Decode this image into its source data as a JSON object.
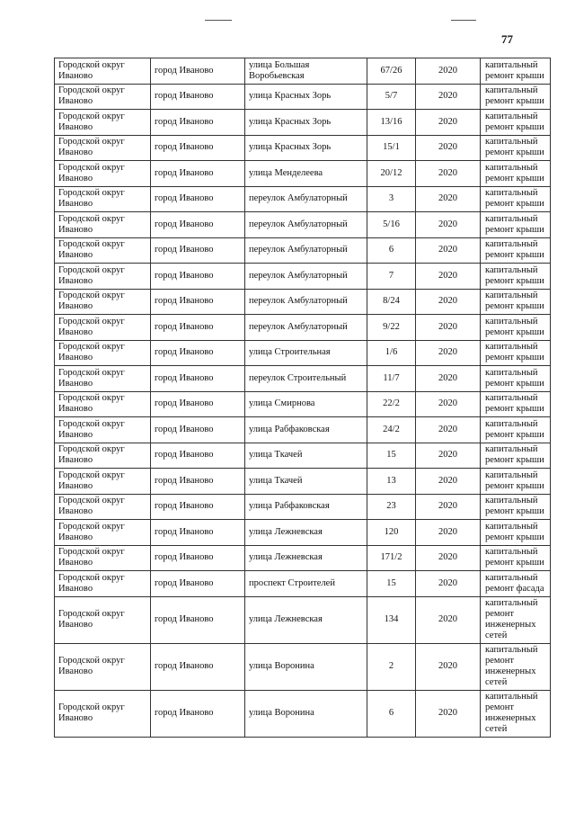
{
  "page_number": "77",
  "rows": [
    [
      "Городской округ Иваново",
      "город Иваново",
      "улица Большая Воробьевская",
      "67/26",
      "2020",
      "капитальный ремонт крыши"
    ],
    [
      "Городской округ Иваново",
      "город Иваново",
      "улица Красных Зорь",
      "5/7",
      "2020",
      "капитальный ремонт крыши"
    ],
    [
      "Городской округ Иваново",
      "город Иваново",
      "улица Красных Зорь",
      "13/16",
      "2020",
      "капитальный ремонт крыши"
    ],
    [
      "Городской округ Иваново",
      "город Иваново",
      "улица Красных Зорь",
      "15/1",
      "2020",
      "капитальный ремонт крыши"
    ],
    [
      "Городской округ Иваново",
      "город Иваново",
      "улица Менделеева",
      "20/12",
      "2020",
      "капитальный ремонт крыши"
    ],
    [
      "Городской округ Иваново",
      "город Иваново",
      "переулок Амбулаторный",
      "3",
      "2020",
      "капитальный ремонт крыши"
    ],
    [
      "Городской округ Иваново",
      "город Иваново",
      "переулок Амбулаторный",
      "5/16",
      "2020",
      "капитальный ремонт крыши"
    ],
    [
      "Городской округ Иваново",
      "город Иваново",
      "переулок Амбулаторный",
      "6",
      "2020",
      "капитальный ремонт крыши"
    ],
    [
      "Городской округ Иваново",
      "город Иваново",
      "переулок Амбулаторный",
      "7",
      "2020",
      "капитальный ремонт крыши"
    ],
    [
      "Городской округ Иваново",
      "город Иваново",
      "переулок Амбулаторный",
      "8/24",
      "2020",
      "капитальный ремонт крыши"
    ],
    [
      "Городской округ Иваново",
      "город Иваново",
      "переулок Амбулаторный",
      "9/22",
      "2020",
      "капитальный ремонт крыши"
    ],
    [
      "Городской округ Иваново",
      "город Иваново",
      "улица Строительная",
      "1/6",
      "2020",
      "капитальный ремонт крыши"
    ],
    [
      "Городской округ Иваново",
      "город Иваново",
      "переулок Строительный",
      "11/7",
      "2020",
      "капитальный ремонт крыши"
    ],
    [
      "Городской округ Иваново",
      "город Иваново",
      "улица Смирнова",
      "22/2",
      "2020",
      "капитальный ремонт крыши"
    ],
    [
      "Городской округ Иваново",
      "город Иваново",
      "улица Рабфаковская",
      "24/2",
      "2020",
      "капитальный ремонт крыши"
    ],
    [
      "Городской округ Иваново",
      "город Иваново",
      "улица Ткачей",
      "15",
      "2020",
      "капитальный ремонт крыши"
    ],
    [
      "Городской округ Иваново",
      "город Иваново",
      "улица Ткачей",
      "13",
      "2020",
      "капитальный ремонт крыши"
    ],
    [
      "Городской округ Иваново",
      "город Иваново",
      "улица Рабфаковская",
      "23",
      "2020",
      "капитальный ремонт крыши"
    ],
    [
      "Городской округ Иваново",
      "город Иваново",
      "улица Лежневская",
      "120",
      "2020",
      "капитальный ремонт крыши"
    ],
    [
      "Городской округ Иваново",
      "город Иваново",
      "улица Лежневская",
      "171/2",
      "2020",
      "капитальный ремонт крыши"
    ],
    [
      "Городской округ Иваново",
      "город Иваново",
      "проспект Строителей",
      "15",
      "2020",
      "капитальный ремонт фасада"
    ],
    [
      "Городской округ Иваново",
      "город Иваново",
      "улица Лежневская",
      "134",
      "2020",
      "капитальный ремонт инженерных сетей"
    ],
    [
      "Городской округ Иваново",
      "город Иваново",
      "улица Воронина",
      "2",
      "2020",
      "капитальный ремонт инженерных сетей"
    ],
    [
      "Городской округ Иваново",
      "город Иваново",
      "улица Воронина",
      "6",
      "2020",
      "капитальный ремонт инженерных сетей"
    ]
  ]
}
